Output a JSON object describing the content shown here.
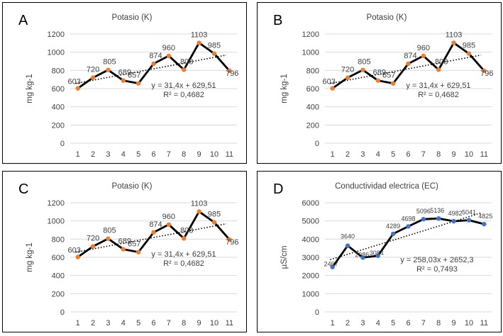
{
  "chart_data": [
    {
      "panel": "A",
      "type": "line",
      "title": "Potasio (K)",
      "xlabel": "",
      "ylabel": "mg kg-1",
      "ylim": [
        0,
        1200
      ],
      "yticks": [
        0,
        200,
        400,
        600,
        800,
        1000,
        1200
      ],
      "x": [
        1,
        2,
        3,
        4,
        5,
        6,
        7,
        8,
        9,
        10,
        11
      ],
      "values": [
        603,
        720,
        805,
        689,
        657,
        874,
        960,
        808,
        1103,
        985,
        796
      ],
      "point_labels": [
        "603",
        "720",
        "805",
        "689",
        "657",
        "874",
        "960",
        "808",
        "1103",
        "985",
        "796"
      ],
      "marker_color": "#ED7D31",
      "line_color": "#000000",
      "trendline": {
        "slope": 31.4,
        "intercept": 629.51,
        "equation": "y = 31,4x + 629,51",
        "r2": "R² = 0,4682"
      },
      "grid": true
    },
    {
      "panel": "B",
      "type": "line",
      "title": "Potasio (K)",
      "xlabel": "",
      "ylabel": "mg kg-1",
      "ylim": [
        0,
        1200
      ],
      "yticks": [
        0,
        200,
        400,
        600,
        800,
        1000,
        1200
      ],
      "x": [
        1,
        2,
        3,
        4,
        5,
        6,
        7,
        8,
        9,
        10,
        11
      ],
      "values": [
        603,
        720,
        805,
        689,
        657,
        874,
        960,
        808,
        1103,
        985,
        796
      ],
      "point_labels": [
        "603",
        "720",
        "805",
        "689",
        "657",
        "874",
        "960",
        "808",
        "1103",
        "985",
        "796"
      ],
      "marker_color": "#ED7D31",
      "line_color": "#000000",
      "trendline": {
        "slope": 31.4,
        "intercept": 629.51,
        "equation": "y = 31,4x + 629,51",
        "r2": "R² = 0,4682"
      },
      "grid": true
    },
    {
      "panel": "C",
      "type": "line",
      "title": "Potasio (K)",
      "xlabel": "",
      "ylabel": "mg kg-1",
      "ylim": [
        0,
        1200
      ],
      "yticks": [
        0,
        200,
        400,
        600,
        800,
        1000,
        1200
      ],
      "x": [
        1,
        2,
        3,
        4,
        5,
        6,
        7,
        8,
        9,
        10,
        11
      ],
      "values": [
        603,
        720,
        805,
        689,
        657,
        874,
        960,
        808,
        1103,
        985,
        796
      ],
      "point_labels": [
        "603",
        "720",
        "805",
        "689",
        "657",
        "874",
        "960",
        "808",
        "1103",
        "985",
        "796"
      ],
      "marker_color": "#ED7D31",
      "line_color": "#000000",
      "trendline": {
        "slope": 31.4,
        "intercept": 629.51,
        "equation": "y = 31,4x + 629,51",
        "r2": "R² = 0,4682"
      },
      "grid": true
    },
    {
      "panel": "D",
      "type": "line",
      "title": "Conductividad electrica (EC)",
      "xlabel": "",
      "ylabel": "µS/cm",
      "ylim": [
        0,
        6000
      ],
      "yticks": [
        0,
        1000,
        2000,
        3000,
        4000,
        5000,
        6000
      ],
      "x": [
        1,
        2,
        3,
        4,
        5,
        6,
        7,
        8,
        9,
        10,
        11
      ],
      "values": [
        2467,
        3640,
        2986,
        3084,
        4289,
        4698,
        5096,
        5136,
        4982,
        5041,
        4825
      ],
      "point_labels": [
        "2467",
        "3640",
        "2986",
        "3084",
        "4289",
        "4698",
        "5096",
        "5136",
        "4982",
        "5041",
        "4825"
      ],
      "marker_color": "#4472C4",
      "line_color": "#000000",
      "trendline": {
        "slope": 258.03,
        "intercept": 2652.3,
        "equation": "y = 258,03x + 2652,3",
        "r2": "R² = 0,7493"
      },
      "grid": true
    }
  ]
}
